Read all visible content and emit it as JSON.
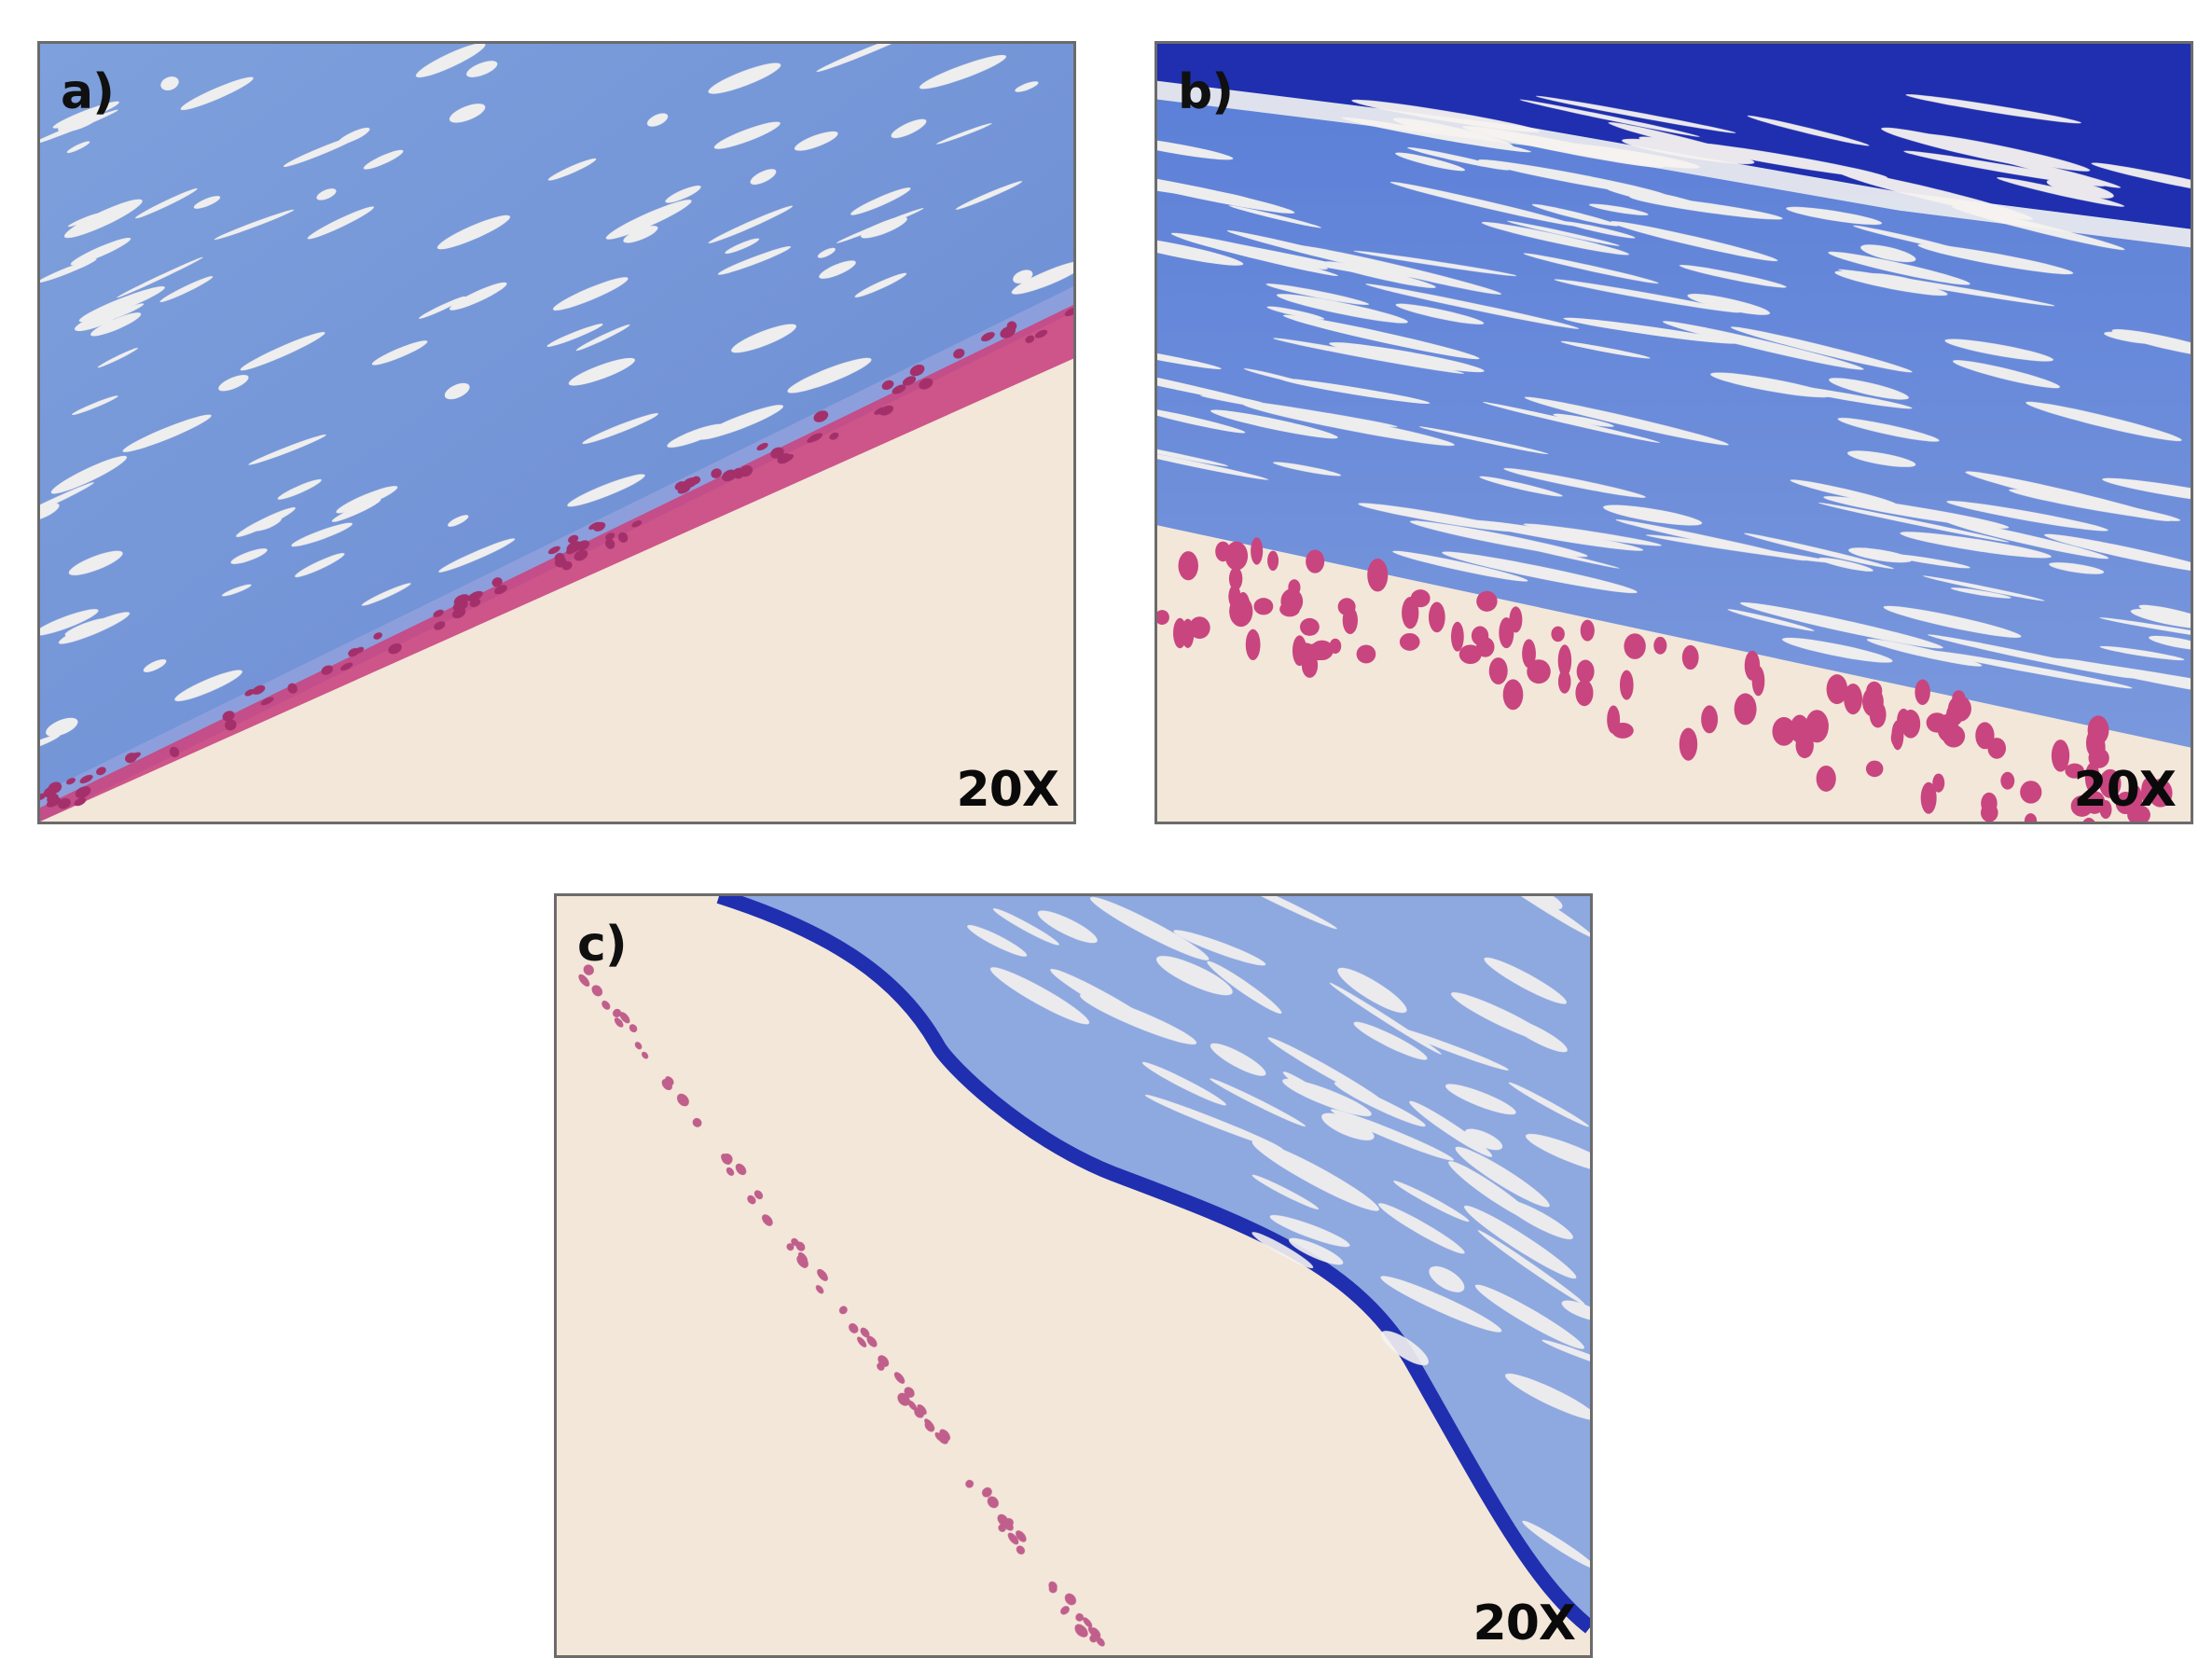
{
  "figure": {
    "panels": [
      {
        "label": "a)",
        "magnification": "20X"
      },
      {
        "label": "b)",
        "magnification": "20X"
      },
      {
        "label": "c)",
        "magnification": "20X"
      }
    ]
  },
  "colors": {
    "background_stain": "#f3e7d9",
    "stroma_blue": "#6f8fd6",
    "deep_blue": "#1f2fb0",
    "epithelium_magenta": "#c9457f",
    "panel_border": "#6b6b6b"
  }
}
